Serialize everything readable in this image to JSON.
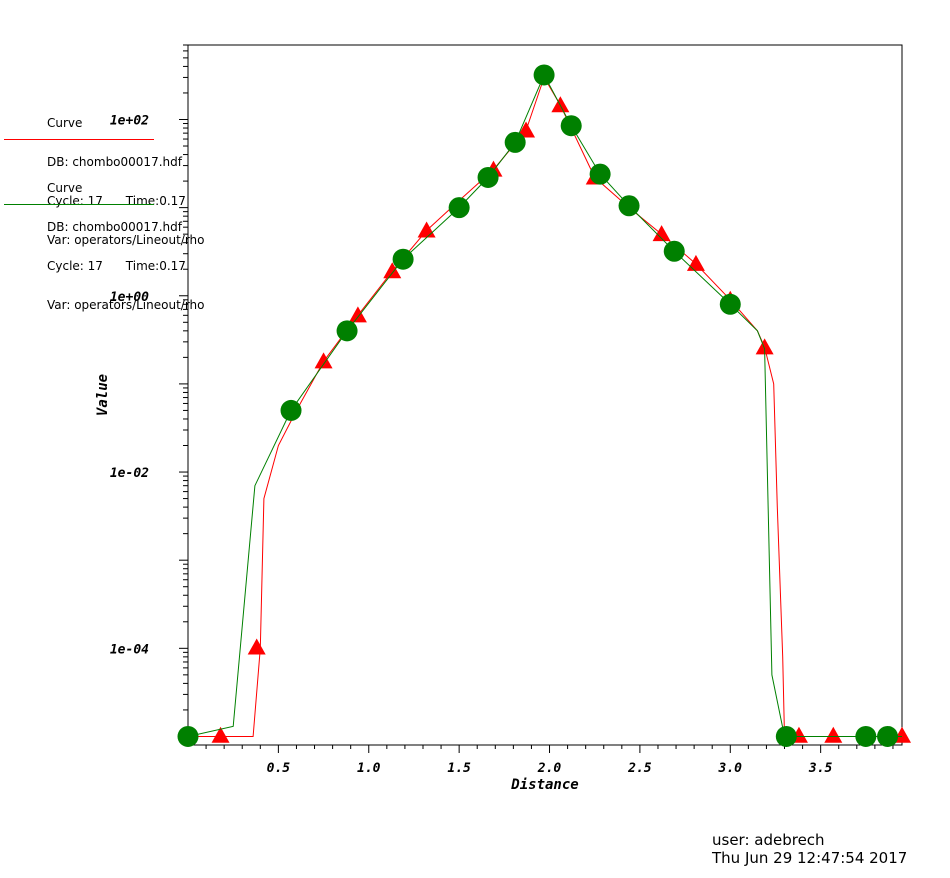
{
  "legend": [
    {
      "kind": "Curve",
      "db": "DB: chombo00017.hdf",
      "cycle": "Cycle: 17      Time:0.17",
      "var": "Var: operators/Lineout/rho",
      "color": "#ff0000",
      "marker": "triangle"
    },
    {
      "kind": "Curve",
      "db": "DB: chombo00017.hdf",
      "cycle": "Cycle: 17      Time:0.17",
      "var": "Var: operators/Lineout/rho",
      "color": "#008000",
      "marker": "circle"
    }
  ],
  "footer": {
    "user": "user: adebrech",
    "date": "Thu Jun 29 12:47:54 2017"
  },
  "chart_data": {
    "type": "line",
    "xlabel": "Distance",
    "ylabel": "Value",
    "xlim": [
      0.0,
      3.95
    ],
    "ylim": [
      8e-06,
      700
    ],
    "yscale": "log",
    "xticks": [
      "0.5",
      "1.0",
      "1.5",
      "2.0",
      "2.5",
      "3.0",
      "3.5"
    ],
    "xtick_values": [
      0.5,
      1.0,
      1.5,
      2.0,
      2.5,
      3.0,
      3.5
    ],
    "yticks": [
      "1e-04",
      "1e-02",
      "1e+00",
      "1e+02"
    ],
    "ytick_values": [
      0.0001,
      0.01,
      1,
      100
    ],
    "grid": false,
    "series": [
      {
        "color": "#ff0000",
        "marker": "triangle",
        "x": [
          0.0,
          0.36,
          0.4,
          0.42,
          0.5,
          0.6,
          0.75,
          0.94,
          1.13,
          1.32,
          1.5,
          1.69,
          1.87,
          1.97,
          2.06,
          2.25,
          2.44,
          2.62,
          2.81,
          3.0,
          3.15,
          3.19,
          3.24,
          3.26,
          3.29,
          3.3,
          3.31,
          3.4,
          3.57,
          3.75,
          3.95
        ],
        "y": [
          1e-05,
          1e-05,
          0.0001,
          0.005,
          0.02,
          0.05,
          0.18,
          0.6,
          1.9,
          5.5,
          12,
          27,
          75,
          300,
          145,
          22,
          10,
          5,
          2.3,
          0.9,
          0.4,
          0.26,
          0.1,
          0.004,
          8e-05,
          1e-05,
          1e-05,
          1e-05,
          1e-05,
          1e-05,
          1e-05
        ],
        "points_x": [
          0.18,
          0.38,
          0.75,
          0.94,
          1.13,
          1.32,
          1.69,
          1.87,
          2.06,
          2.25,
          2.62,
          2.81,
          3.0,
          3.19,
          3.38,
          3.57,
          3.95
        ],
        "points_y": [
          1.02e-05,
          0.000102,
          0.18,
          0.6,
          1.9,
          5.5,
          27,
          75,
          145,
          22,
          5,
          2.3,
          0.9,
          0.26,
          1.02e-05,
          1.02e-05,
          1.02e-05
        ]
      },
      {
        "color": "#008000",
        "marker": "circle",
        "x": [
          0.0,
          0.25,
          0.37,
          0.57,
          0.88,
          1.19,
          1.5,
          1.66,
          1.81,
          1.97,
          2.12,
          2.28,
          2.44,
          2.69,
          3.0,
          3.15,
          3.19,
          3.23,
          3.3,
          3.31,
          3.5,
          3.75,
          3.87,
          3.95
        ],
        "y": [
          1e-05,
          1.3e-05,
          0.007,
          0.05,
          0.4,
          2.6,
          10,
          22,
          55,
          320,
          85,
          24,
          10.5,
          3.2,
          0.8,
          0.4,
          0.25,
          5e-05,
          1e-05,
          1e-05,
          1e-05,
          1e-05,
          1e-05,
          1e-05
        ],
        "points_x": [
          0.0,
          0.57,
          0.88,
          1.19,
          1.5,
          1.66,
          1.81,
          1.97,
          2.12,
          2.28,
          2.44,
          2.69,
          3.0,
          3.31,
          3.75,
          3.87
        ],
        "points_y": [
          1e-05,
          0.05,
          0.4,
          2.6,
          10,
          22,
          55,
          320,
          85,
          24,
          10.5,
          3.2,
          0.8,
          1e-05,
          1e-05,
          1e-05
        ]
      }
    ]
  }
}
